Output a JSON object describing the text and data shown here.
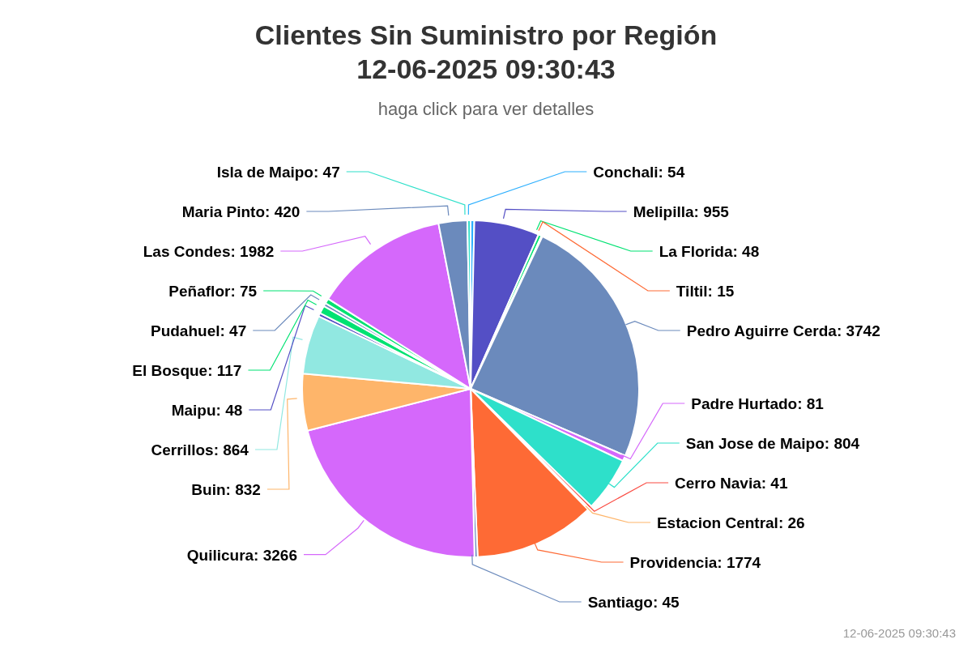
{
  "chart_data": {
    "type": "pie",
    "title": "Clientes Sin Suministro por Región\n12-06-2025 09:30:43",
    "subtitle": "haga click para ver detalles",
    "categories": [
      "Conchali",
      "Melipilla",
      "La Florida",
      "Tiltil",
      "Pedro Aguirre Cerda",
      "Padre Hurtado",
      "San Jose de Maipo",
      "Cerro Navia",
      "Estacion Central",
      "Providencia",
      "Santiago",
      "Quilicura",
      "Buin",
      "Cerrillos",
      "Maipu",
      "El Bosque",
      "Pudahuel",
      "Peñaflor",
      "Las Condes",
      "Maria Pinto",
      "Isla de Maipo"
    ],
    "values": [
      54,
      955,
      48,
      15,
      3742,
      81,
      804,
      41,
      26,
      1774,
      45,
      3266,
      832,
      864,
      48,
      117,
      47,
      75,
      1982,
      420,
      47
    ],
    "colors": [
      "#2caffe",
      "#544fc5",
      "#00e272",
      "#fe6a35",
      "#6b8abc",
      "#d568fb",
      "#2ee0ca",
      "#fa4b42",
      "#feb56a",
      "#fe6a35",
      "#6b8abc",
      "#d568fb",
      "#feb56a",
      "#91e8e1",
      "#544fc5",
      "#00e272",
      "#6b8abc",
      "#00e272",
      "#d568fb",
      "#6b8abc",
      "#2ee0ca"
    ],
    "value_labels": [
      ": 54",
      ": 955",
      ": 48",
      ": 15",
      ": 3742",
      ": 81",
      ": 804",
      ": 41",
      ": 26",
      ": 1774",
      ": 45",
      ": 3266",
      ": 832",
      ": 864",
      ": 48",
      ": 117",
      ": 47",
      ": 75",
      ": 1982",
      ": 420",
      ": 47"
    ],
    "annotations": [
      "12-06-2025 09:30:43"
    ]
  }
}
